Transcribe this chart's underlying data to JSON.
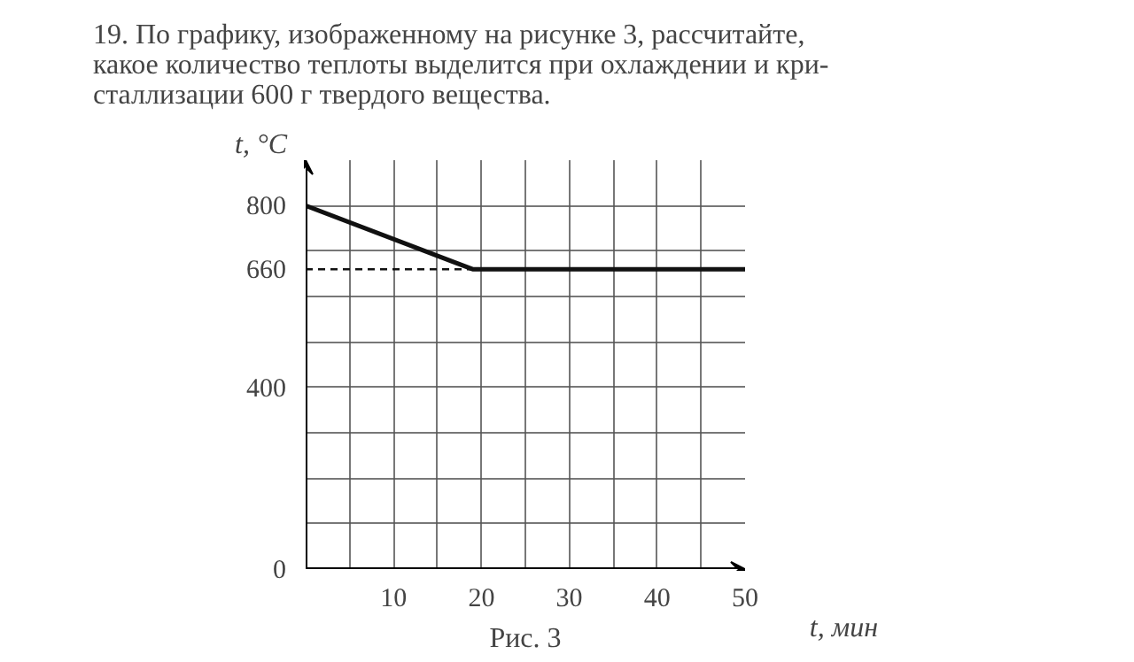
{
  "chart_data": {
    "type": "line",
    "title": "19. По графику, изображенному на рисунке 3, рассчитайте,\nкакое количество теплоты выделится при охлаждении и кри-\nсталлизации 600 г твердого вещества.",
    "xlabel": "t, мин",
    "ylabel": "t, °C",
    "annotations": [
      "Рис. 3"
    ],
    "x": [
      0,
      19,
      50
    ],
    "series": [
      {
        "color": "#111111",
        "values": [
          800,
          660,
          660
        ]
      }
    ],
    "xlim": [
      0,
      50
    ],
    "xticks": [
      {
        "value": 0,
        "label": null
      },
      {
        "value": 5,
        "label": null
      },
      10,
      {
        "value": 15,
        "label": null
      },
      20,
      {
        "value": 25,
        "label": null
      },
      30,
      {
        "value": 35,
        "label": null
      },
      40,
      {
        "value": 45,
        "label": null
      },
      50
    ],
    "ylim": [
      0,
      900
    ],
    "yticks": [
      0,
      {
        "value": 100,
        "label": null
      },
      {
        "value": 200,
        "label": null
      },
      {
        "value": 300,
        "label": null
      },
      400,
      {
        "value": 500,
        "label": null
      },
      {
        "value": 600,
        "label": null
      },
      660,
      {
        "value": 700,
        "label": null
      },
      800
    ],
    "ref_lines": [
      {
        "axis": "y",
        "value": 660,
        "line_style": "dashed",
        "color": "#111111"
      }
    ],
    "grid": true,
    "marker": "none",
    "line_style": "solid"
  }
}
